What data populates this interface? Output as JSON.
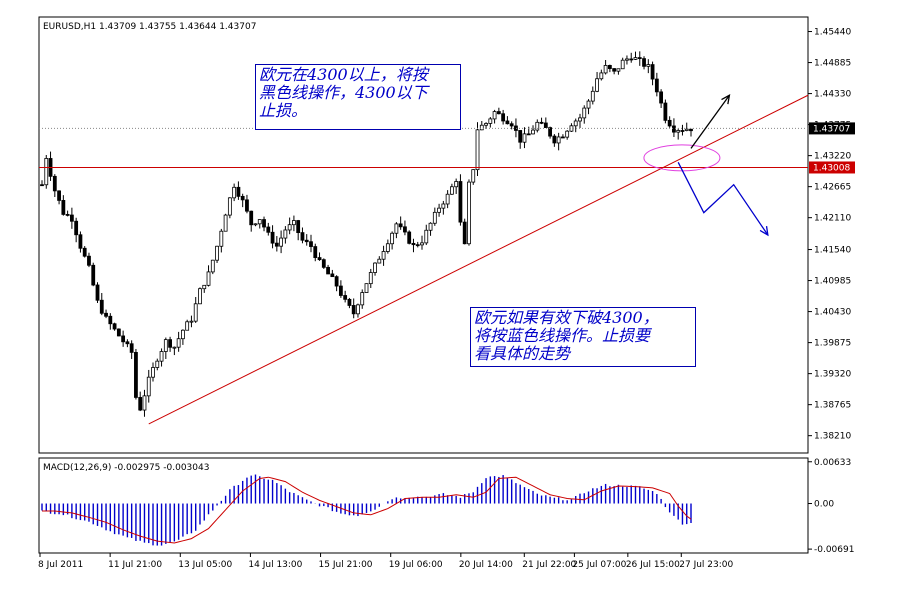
{
  "chart_data": [
    {
      "type": "candlestick",
      "symbol_header": "EURUSD,H1  1.43709 1.43755 1.43644 1.43707",
      "ylim": [
        1.379,
        1.457
      ],
      "y_ticks": [
        "1.45440",
        "1.44885",
        "1.44330",
        "1.43775",
        "1.43220",
        "1.42665",
        "1.42110",
        "1.41540",
        "1.40985",
        "1.40430",
        "1.39875",
        "1.39320",
        "1.38765",
        "1.38210"
      ],
      "price_label": "1.43707",
      "level_label": "1.43008",
      "x_ticks": [
        "8 Jul 2011",
        "11 Jul 21:00",
        "13 Jul 05:00",
        "14 Jul 13:00",
        "15 Jul 21:00",
        "19 Jul 06:00",
        "20 Jul 14:00",
        "21 Jul 22:00",
        "25 Jul 07:00",
        "26 Jul 15:00",
        "27 Jul 23:00"
      ],
      "price_path": [
        [
          0,
          1.427
        ],
        [
          1,
          1.432
        ],
        [
          2,
          1.429
        ],
        [
          3,
          1.426
        ],
        [
          5,
          1.422
        ],
        [
          7,
          1.421
        ],
        [
          9,
          1.416
        ],
        [
          11,
          1.412
        ],
        [
          13,
          1.406
        ],
        [
          15,
          1.403
        ],
        [
          17,
          1.401
        ],
        [
          19,
          1.399
        ],
        [
          21,
          1.397
        ],
        [
          22,
          1.389
        ],
        [
          23,
          1.387
        ],
        [
          25,
          1.392
        ],
        [
          27,
          1.396
        ],
        [
          29,
          1.399
        ],
        [
          31,
          1.398
        ],
        [
          33,
          1.401
        ],
        [
          35,
          1.403
        ],
        [
          37,
          1.408
        ],
        [
          39,
          1.411
        ],
        [
          41,
          1.416
        ],
        [
          43,
          1.422
        ],
        [
          45,
          1.427
        ],
        [
          47,
          1.424
        ],
        [
          49,
          1.42
        ],
        [
          51,
          1.421
        ],
        [
          53,
          1.418
        ],
        [
          55,
          1.416
        ],
        [
          57,
          1.419
        ],
        [
          59,
          1.42
        ],
        [
          61,
          1.417
        ],
        [
          63,
          1.416
        ],
        [
          65,
          1.413
        ],
        [
          67,
          1.411
        ],
        [
          69,
          1.409
        ],
        [
          71,
          1.406
        ],
        [
          73,
          1.404
        ],
        [
          75,
          1.408
        ],
        [
          77,
          1.411
        ],
        [
          79,
          1.414
        ],
        [
          81,
          1.417
        ],
        [
          83,
          1.42
        ],
        [
          85,
          1.418
        ],
        [
          87,
          1.416
        ],
        [
          89,
          1.417
        ],
        [
          91,
          1.42
        ],
        [
          93,
          1.423
        ],
        [
          95,
          1.425
        ],
        [
          97,
          1.428
        ],
        [
          98,
          1.42
        ],
        [
          99,
          1.416
        ],
        [
          100,
          1.427
        ],
        [
          101,
          1.43
        ],
        [
          102,
          1.437
        ],
        [
          104,
          1.438
        ],
        [
          106,
          1.44
        ],
        [
          108,
          1.439
        ],
        [
          110,
          1.438
        ],
        [
          112,
          1.435
        ],
        [
          114,
          1.436
        ],
        [
          116,
          1.438
        ],
        [
          118,
          1.437
        ],
        [
          120,
          1.435
        ],
        [
          122,
          1.436
        ],
        [
          124,
          1.438
        ],
        [
          126,
          1.439
        ],
        [
          128,
          1.442
        ],
        [
          130,
          1.446
        ],
        [
          132,
          1.448
        ],
        [
          134,
          1.447
        ],
        [
          136,
          1.449
        ],
        [
          138,
          1.45
        ],
        [
          140,
          1.449
        ],
        [
          142,
          1.448
        ],
        [
          144,
          1.444
        ],
        [
          146,
          1.439
        ],
        [
          148,
          1.437
        ],
        [
          150,
          1.437
        ],
        [
          152,
          1.4371
        ]
      ],
      "horizontal_level": 1.43008,
      "trendline": [
        [
          25,
          1.3842
        ],
        [
          178,
          1.443
        ]
      ],
      "arrows": {
        "black": [
          [
            152,
            1.4335
          ],
          [
            161,
            1.443
          ]
        ],
        "blue": [
          [
            149,
            1.431
          ],
          [
            155,
            1.422
          ],
          [
            162,
            1.427
          ],
          [
            170,
            1.418
          ]
        ]
      },
      "ellipse": {
        "x": 148,
        "y": 1.4318
      }
    },
    {
      "type": "bar",
      "header": "MACD(12,26,9) -0.002975 -0.003043",
      "ylim": [
        -0.0075,
        0.0069
      ],
      "y_ticks": [
        "0.00633",
        "0.00",
        "-0.00691"
      ],
      "macd_path": [
        [
          0,
          -0.0012
        ],
        [
          4,
          -0.0015
        ],
        [
          8,
          -0.0022
        ],
        [
          12,
          -0.003
        ],
        [
          16,
          -0.0042
        ],
        [
          20,
          -0.0052
        ],
        [
          24,
          -0.006
        ],
        [
          28,
          -0.0063
        ],
        [
          32,
          -0.0056
        ],
        [
          36,
          -0.004
        ],
        [
          40,
          -0.001
        ],
        [
          44,
          0.002
        ],
        [
          48,
          0.004
        ],
        [
          50,
          0.0042
        ],
        [
          54,
          0.0035
        ],
        [
          58,
          0.0018
        ],
        [
          62,
          0.0005
        ],
        [
          66,
          -0.0005
        ],
        [
          70,
          -0.0015
        ],
        [
          74,
          -0.0018
        ],
        [
          78,
          -0.0008
        ],
        [
          82,
          0.0008
        ],
        [
          86,
          0.001
        ],
        [
          90,
          0.001
        ],
        [
          94,
          0.0014
        ],
        [
          98,
          0.001
        ],
        [
          101,
          0.0018
        ],
        [
          104,
          0.004
        ],
        [
          108,
          0.0042
        ],
        [
          112,
          0.0028
        ],
        [
          116,
          0.0014
        ],
        [
          120,
          0.0008
        ],
        [
          124,
          0.0006
        ],
        [
          128,
          0.002
        ],
        [
          132,
          0.0028
        ],
        [
          136,
          0.0027
        ],
        [
          140,
          0.0025
        ],
        [
          144,
          0.0016
        ],
        [
          146,
          -0.0004
        ],
        [
          148,
          -0.002
        ],
        [
          150,
          -0.003
        ],
        [
          152,
          -0.003
        ]
      ],
      "signal_lag": 3,
      "x_ticks": [
        "8 Jul 2011",
        "11 Jul 21:00",
        "13 Jul 05:00",
        "14 Jul 13:00",
        "15 Jul 21:00",
        "19 Jul 06:00",
        "20 Jul 14:00",
        "21 Jul 22:00",
        "25 Jul 07:00",
        "26 Jul 15:00",
        "27 Jul 23:00"
      ]
    }
  ],
  "annotations": [
    {
      "lines": [
        "欧元在4300以上，将按",
        "黑色线操作，4300以下",
        "止损。"
      ]
    },
    {
      "lines": [
        "欧元如果有效下破4300，",
        "将按蓝色线操作。止损要",
        "看具体的走势"
      ]
    }
  ],
  "colors": {
    "up_candle": "#000000",
    "down_candle": "#000000",
    "trendline": "#cc0000",
    "level": "#cc0000",
    "price_tag": "#000000",
    "level_tag": "#cc0000",
    "black_arrow": "#000000",
    "blue_arrow": "#0000cc",
    "ellipse": "#e040e0",
    "macd_bars": "#0000cc",
    "signal": "#cc0000"
  }
}
